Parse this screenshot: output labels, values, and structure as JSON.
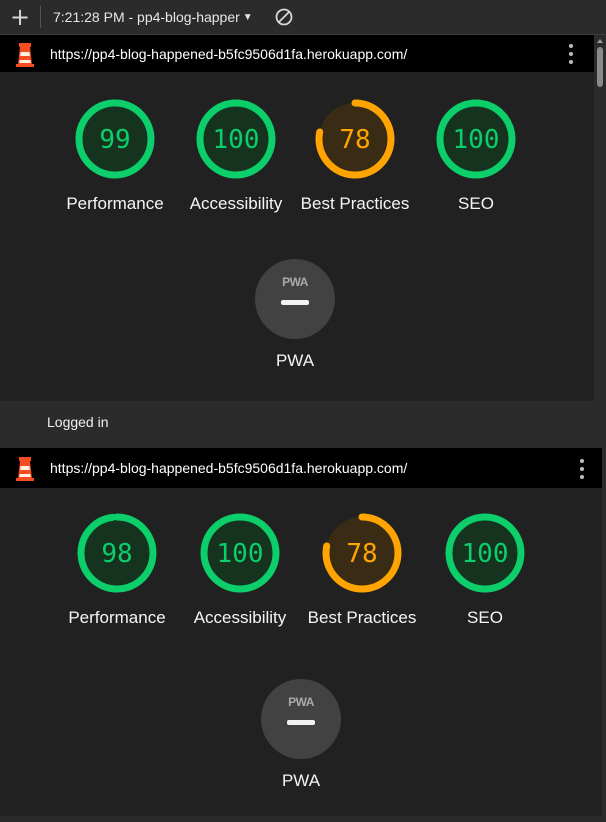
{
  "toolbar": {
    "new_report_icon": "plus-icon",
    "report_selector": "7:21:28 PM - pp4-blog-happer",
    "caret_icon": "caret-down-icon",
    "clear_icon": "clear-icon"
  },
  "reports": [
    {
      "url": "https://pp4-blog-happened-b5fc9506d1fa.herokuapp.com/",
      "scores": [
        {
          "label": "Performance",
          "value": "99",
          "score": 99,
          "color": "#0cce6b",
          "fill": "#15331f"
        },
        {
          "label": "Accessibility",
          "value": "100",
          "score": 100,
          "color": "#0cce6b",
          "fill": "#15331f"
        },
        {
          "label": "Best Practices",
          "value": "78",
          "score": 78,
          "color": "#ffa400",
          "fill": "#3a2c14"
        },
        {
          "label": "SEO",
          "value": "100",
          "score": 100,
          "color": "#0cce6b",
          "fill": "#15331f"
        }
      ],
      "pwa": {
        "badge": "PWA",
        "label": "PWA"
      }
    },
    {
      "section_title": "Logged in",
      "url": "https://pp4-blog-happened-b5fc9506d1fa.herokuapp.com/",
      "scores": [
        {
          "label": "Performance",
          "value": "98",
          "score": 98,
          "color": "#0cce6b",
          "fill": "#15331f"
        },
        {
          "label": "Accessibility",
          "value": "100",
          "score": 100,
          "color": "#0cce6b",
          "fill": "#15331f"
        },
        {
          "label": "Best Practices",
          "value": "78",
          "score": 78,
          "color": "#ffa400",
          "fill": "#3a2c14"
        },
        {
          "label": "SEO",
          "value": "100",
          "score": 100,
          "color": "#0cce6b",
          "fill": "#15331f"
        }
      ],
      "pwa": {
        "badge": "PWA",
        "label": "PWA"
      }
    }
  ],
  "logo_icon": "lighthouse-logo-icon",
  "menu_icon": "kebab-menu-icon"
}
